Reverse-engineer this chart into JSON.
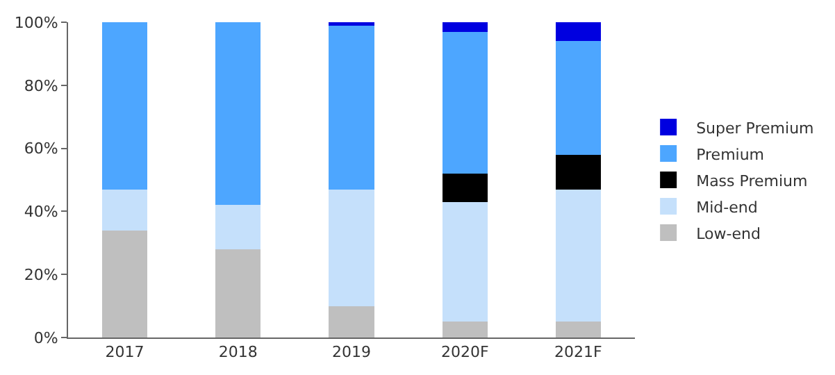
{
  "chart_data": {
    "type": "bar",
    "stacked": true,
    "categories": [
      "2017",
      "2018",
      "2019",
      "2020F",
      "2021F"
    ],
    "series": [
      {
        "name": "Low-end",
        "color": "#bfbfbf",
        "values": [
          34,
          28,
          10,
          5,
          5
        ]
      },
      {
        "name": "Mid-end",
        "color": "#c5e0fb",
        "values": [
          13,
          14,
          37,
          38,
          42
        ]
      },
      {
        "name": "Mass Premium",
        "color": "#000000",
        "values": [
          0,
          0,
          0,
          9,
          11
        ]
      },
      {
        "name": "Premium",
        "color": "#4da6ff",
        "values": [
          53,
          58,
          52,
          45,
          36
        ]
      },
      {
        "name": "Super Premium",
        "color": "#0000e0",
        "values": [
          0,
          0,
          1,
          3,
          6
        ]
      }
    ],
    "ylim": [
      0,
      100
    ],
    "yticks": [
      {
        "value": 0,
        "label": "0%"
      },
      {
        "value": 20,
        "label": "20%"
      },
      {
        "value": 40,
        "label": "40%"
      },
      {
        "value": 60,
        "label": "60%"
      },
      {
        "value": 80,
        "label": "80%"
      },
      {
        "value": 100,
        "label": "100%"
      }
    ],
    "legend": "right"
  }
}
